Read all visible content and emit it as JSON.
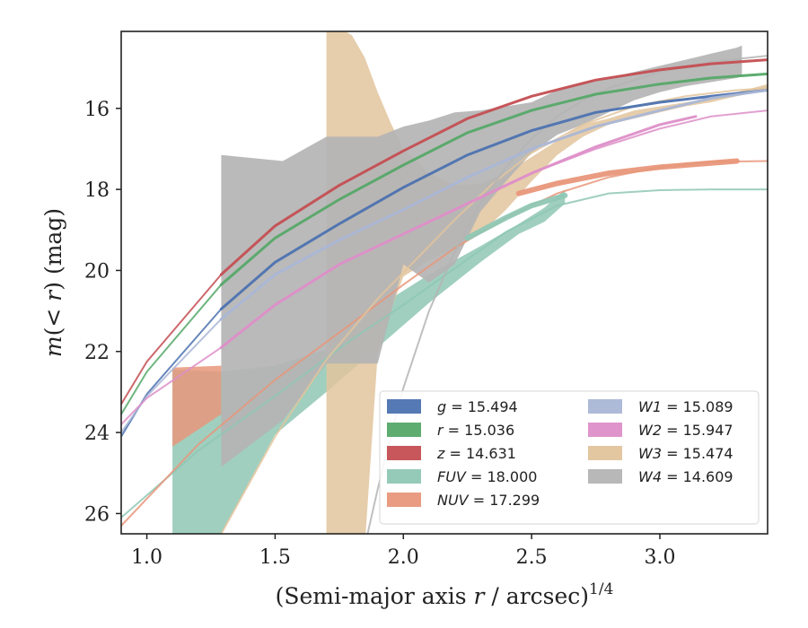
{
  "chart_data": {
    "type": "line",
    "xlabel": "(Semi-major axis r / arcsec)^1/4",
    "xlabel_main": "(Semi-major axis ",
    "xlabel_var": "r",
    "xlabel_unit": " / arcsec)",
    "xlabel_sup": "1/4",
    "ylabel": "m(<r) (mag)",
    "ylabel_prefix": "m",
    "ylabel_paren_open": "(",
    "ylabel_ineq": "< r",
    "ylabel_suffix": ") (mag)",
    "xlim": [
      0.9,
      3.42
    ],
    "ylim": [
      26.5,
      14.1
    ],
    "y_inverted": true,
    "xticks": [
      1.0,
      1.5,
      2.0,
      2.5,
      3.0
    ],
    "xtick_labels": [
      "1.0",
      "1.5",
      "2.0",
      "2.5",
      "3.0"
    ],
    "yticks": [
      16,
      18,
      20,
      22,
      24,
      26
    ],
    "ytick_labels": [
      "16",
      "18",
      "20",
      "22",
      "24",
      "26"
    ],
    "grid": false,
    "legend_position": "lower-right",
    "legend_ncol": 2,
    "series": [
      {
        "key": "g",
        "name": "g = 15.494",
        "color": "#4c72b0",
        "mtot": 15.494,
        "data_x": [
          1.29,
          1.5,
          1.75,
          2.0,
          2.25,
          2.5,
          2.75,
          3.0,
          3.2,
          3.42
        ],
        "data_y": [
          20.95,
          19.8,
          18.85,
          17.95,
          17.15,
          16.55,
          16.1,
          15.85,
          15.7,
          15.55
        ],
        "model_x": [
          0.9,
          1.0,
          1.29
        ],
        "model_y": [
          24.1,
          23.05,
          20.95
        ]
      },
      {
        "key": "r",
        "name": "r = 15.036",
        "color": "#55a868",
        "mtot": 15.036,
        "data_x": [
          1.29,
          1.5,
          1.75,
          2.0,
          2.25,
          2.5,
          2.75,
          3.0,
          3.2,
          3.42
        ],
        "data_y": [
          20.35,
          19.2,
          18.25,
          17.4,
          16.6,
          16.05,
          15.65,
          15.4,
          15.25,
          15.15
        ],
        "model_x": [
          0.9,
          1.0,
          1.29
        ],
        "model_y": [
          23.55,
          22.5,
          20.35
        ]
      },
      {
        "key": "z",
        "name": "z = 14.631",
        "color": "#c44e52",
        "mtot": 14.631,
        "data_x": [
          1.29,
          1.5,
          1.75,
          2.0,
          2.25,
          2.5,
          2.75,
          3.0,
          3.2,
          3.42
        ],
        "data_y": [
          20.1,
          18.9,
          17.9,
          17.05,
          16.25,
          15.7,
          15.3,
          15.05,
          14.9,
          14.8
        ],
        "model_x": [
          0.9,
          1.0,
          1.29
        ],
        "model_y": [
          23.3,
          22.25,
          20.1
        ]
      },
      {
        "key": "FUV",
        "name": "FUV = 18.000",
        "color": "#8fc7b4",
        "mtot": 18.0,
        "band_x": [
          1.1,
          1.29,
          1.5,
          1.7,
          1.9,
          2.1,
          2.3,
          2.45,
          2.55,
          2.63
        ],
        "band_upper": [
          22.45,
          22.5,
          22.35,
          21.95,
          20.9,
          20.1,
          19.4,
          18.85,
          18.45,
          18.0
        ],
        "band_lower": [
          26.8,
          26.5,
          24.05,
          23.0,
          21.9,
          20.8,
          19.8,
          19.1,
          18.8,
          18.35
        ],
        "data_x": [
          2.25,
          2.4,
          2.5,
          2.63
        ],
        "data_y": [
          19.2,
          18.7,
          18.4,
          18.15
        ],
        "model_x": [
          0.9,
          1.2,
          1.5,
          1.8,
          2.0,
          2.2,
          2.4,
          2.6,
          2.8,
          3.0,
          3.2,
          3.42
        ],
        "model_y": [
          26.1,
          24.45,
          23.1,
          21.7,
          20.85,
          19.95,
          19.05,
          18.4,
          18.1,
          18.02,
          18.0,
          18.0
        ]
      },
      {
        "key": "NUV",
        "name": "NUV = 17.299",
        "color": "#e8977a",
        "mtot": 17.299,
        "band_x": [
          1.1,
          1.29
        ],
        "band_upper": [
          22.4,
          22.35
        ],
        "band_lower": [
          24.35,
          23.55
        ],
        "data_x": [
          2.45,
          2.6,
          2.8,
          3.0,
          3.2,
          3.3
        ],
        "data_y": [
          18.1,
          17.85,
          17.6,
          17.45,
          17.35,
          17.3
        ],
        "model_x": [
          0.9,
          1.2,
          1.5,
          1.8,
          2.0,
          2.2,
          2.4,
          2.6,
          2.8,
          3.0,
          3.2,
          3.42
        ],
        "model_y": [
          26.3,
          24.3,
          22.7,
          21.3,
          20.35,
          19.45,
          18.7,
          18.1,
          17.7,
          17.45,
          17.32,
          17.3
        ]
      },
      {
        "key": "W1",
        "name": "W1 = 15.089",
        "color": "#a9b6d6",
        "mtot": 15.089,
        "data_x": [
          1.29,
          1.5,
          1.75,
          2.0,
          2.25,
          2.5,
          2.75,
          3.0,
          3.2,
          3.42
        ],
        "data_y": [
          21.2,
          20.1,
          19.25,
          18.5,
          17.7,
          17.0,
          16.45,
          16.05,
          15.75,
          15.55
        ],
        "model_x": [
          0.9,
          1.0,
          1.29
        ],
        "model_y": [
          24.0,
          23.1,
          21.2
        ]
      },
      {
        "key": "W2",
        "name": "W2 = 15.947",
        "color": "#dd8fc8",
        "mtot": 15.947,
        "data_x": [
          1.29,
          1.5,
          1.75,
          2.0,
          2.25,
          2.5,
          2.75,
          3.0,
          3.14
        ],
        "data_y": [
          21.9,
          20.85,
          19.85,
          19.1,
          18.35,
          17.6,
          16.95,
          16.4,
          16.2
        ],
        "model_x": [
          0.9,
          1.0,
          1.29,
          1.5,
          1.75,
          2.0,
          2.25,
          2.5,
          2.75,
          3.0,
          3.2,
          3.42
        ],
        "model_y": [
          23.8,
          23.15,
          21.9,
          20.85,
          19.85,
          19.1,
          18.35,
          17.6,
          17.0,
          16.5,
          16.2,
          16.05
        ]
      },
      {
        "key": "W3",
        "name": "W3 = 15.474",
        "color": "#e2c49c",
        "mtot": 15.474,
        "band_x": [
          1.7,
          1.75,
          1.8,
          1.85,
          1.9,
          1.95,
          2.0,
          2.1,
          2.2,
          2.3,
          2.4,
          2.5,
          2.6,
          2.7,
          2.8,
          2.9,
          3.0,
          3.1,
          3.2,
          3.3,
          3.42
        ],
        "band_upper": [
          14.0,
          14.0,
          14.2,
          14.75,
          15.6,
          16.35,
          17.0,
          17.6,
          17.9,
          17.85,
          17.6,
          17.2,
          16.8,
          16.4,
          16.25,
          16.05,
          15.95,
          15.85,
          15.75,
          15.6,
          15.4
        ],
        "band_lower": [
          26.8,
          26.8,
          26.8,
          26.8,
          22.05,
          21.0,
          20.15,
          19.75,
          19.45,
          19.1,
          18.5,
          17.8,
          17.15,
          16.7,
          16.4,
          16.25,
          16.1,
          15.95,
          15.85,
          15.7,
          15.55
        ],
        "model_x": [
          1.29,
          1.5,
          1.7,
          1.9,
          2.0,
          2.1,
          2.2,
          2.35,
          2.5,
          2.7,
          2.9,
          3.1,
          3.3,
          3.42
        ],
        "model_y": [
          26.5,
          24.1,
          22.2,
          20.7,
          20.05,
          19.4,
          18.75,
          17.85,
          17.1,
          16.4,
          15.95,
          15.7,
          15.55,
          15.5
        ]
      },
      {
        "key": "W4",
        "name": "W4 = 14.609",
        "color": "#b4b4b4",
        "mtot": 14.609,
        "band_x": [
          1.29,
          1.53,
          1.7,
          1.9,
          2.0,
          2.1,
          2.2,
          2.3,
          2.4,
          2.5,
          2.6,
          2.7,
          2.8,
          2.9,
          3.0,
          3.1,
          3.2,
          3.3,
          3.32
        ],
        "band_upper": [
          17.15,
          17.3,
          16.7,
          16.7,
          16.45,
          16.3,
          16.1,
          16.05,
          15.95,
          15.85,
          15.55,
          15.35,
          15.25,
          15.1,
          14.95,
          14.8,
          14.65,
          14.5,
          14.45
        ],
        "band_lower": [
          24.85,
          23.7,
          22.3,
          22.3,
          19.85,
          20.3,
          19.85,
          18.55,
          17.8,
          17.1,
          16.65,
          16.4,
          16.1,
          15.8,
          15.6,
          15.45,
          15.35,
          15.25,
          15.2
        ],
        "model_x": [
          1.85,
          1.9,
          1.95,
          2.0,
          2.1,
          2.2,
          2.3,
          2.4,
          2.5,
          2.6,
          2.7,
          2.8,
          3.0,
          3.2,
          3.42
        ],
        "model_y": [
          26.8,
          25.4,
          24.1,
          22.9,
          21.0,
          19.55,
          18.35,
          17.45,
          16.75,
          16.2,
          15.8,
          15.5,
          15.1,
          14.85,
          14.7
        ]
      }
    ]
  }
}
